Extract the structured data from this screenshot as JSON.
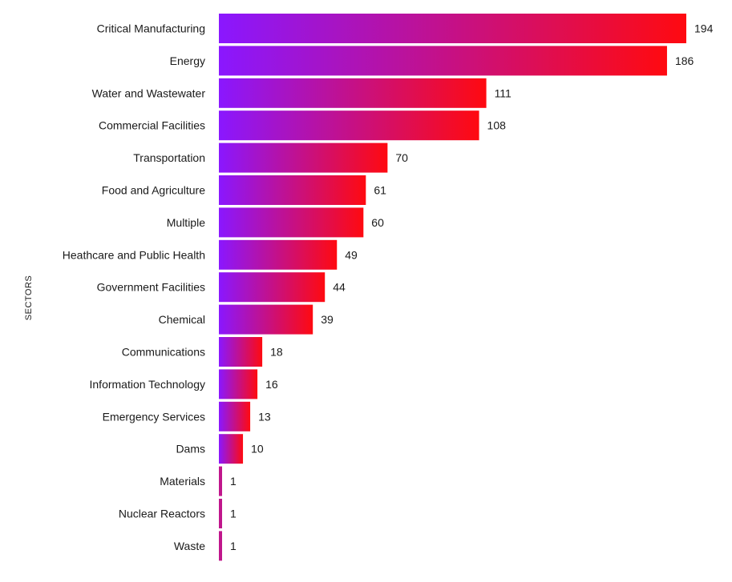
{
  "chart_data": {
    "type": "bar",
    "orientation": "horizontal",
    "title": "",
    "xlabel": "",
    "ylabel": "SECTORS",
    "categories": [
      "Critical Manufacturing",
      "Energy",
      "Water and Wastewater",
      "Commercial Facilities",
      "Transportation",
      "Food and Agriculture",
      "Multiple",
      "Heathcare and Public Health",
      "Government Facilities",
      "Chemical",
      "Communications",
      "Information Technology",
      "Emergency Services",
      "Dams",
      "Materials",
      "Nuclear Reactors",
      "Waste"
    ],
    "values": [
      194,
      186,
      111,
      108,
      70,
      61,
      60,
      49,
      44,
      39,
      18,
      16,
      13,
      10,
      1,
      1,
      1
    ],
    "xlim": [
      0,
      194
    ],
    "grid": false,
    "legend": "none"
  },
  "colors": {
    "gradient_start": "#8a17ff",
    "gradient_end": "#ff0a10",
    "text": "#1a1a1a"
  }
}
